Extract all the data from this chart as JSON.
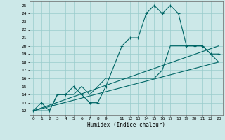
{
  "xlabel": "Humidex (Indice chaleur)",
  "background_color": "#cce8e8",
  "grid_color": "#99cccc",
  "line_color": "#006666",
  "xlim": [
    -0.5,
    23.5
  ],
  "ylim": [
    11.5,
    25.5
  ],
  "xticks": [
    0,
    1,
    2,
    3,
    4,
    5,
    6,
    7,
    8,
    9,
    11,
    12,
    13,
    14,
    15,
    16,
    17,
    18,
    19,
    20,
    21,
    22,
    23
  ],
  "yticks": [
    12,
    13,
    14,
    15,
    16,
    17,
    18,
    19,
    20,
    21,
    22,
    23,
    24,
    25
  ],
  "line1_x": [
    0,
    1,
    2,
    3,
    4,
    5,
    6,
    7,
    8,
    9,
    11,
    12,
    13,
    14,
    15,
    16,
    17,
    18,
    19,
    20,
    21,
    22,
    23
  ],
  "line1_y": [
    12,
    13,
    12,
    14,
    14,
    15,
    14,
    13,
    13,
    15,
    20,
    21,
    21,
    24,
    25,
    24,
    25,
    24,
    20,
    20,
    20,
    19,
    19
  ],
  "line2_x": [
    0,
    1,
    2,
    3,
    4,
    5,
    6,
    7,
    8,
    9,
    11,
    12,
    13,
    14,
    15,
    16,
    17,
    18,
    19,
    20,
    21,
    22,
    23
  ],
  "line2_y": [
    12,
    12,
    12,
    14,
    14,
    14,
    15,
    14,
    15,
    16,
    16,
    16,
    16,
    16,
    16,
    17,
    20,
    20,
    20,
    20,
    20,
    19,
    18
  ],
  "line3_x": [
    0,
    23
  ],
  "line3_y": [
    12,
    20
  ],
  "line4_x": [
    0,
    23
  ],
  "line4_y": [
    12,
    18
  ]
}
